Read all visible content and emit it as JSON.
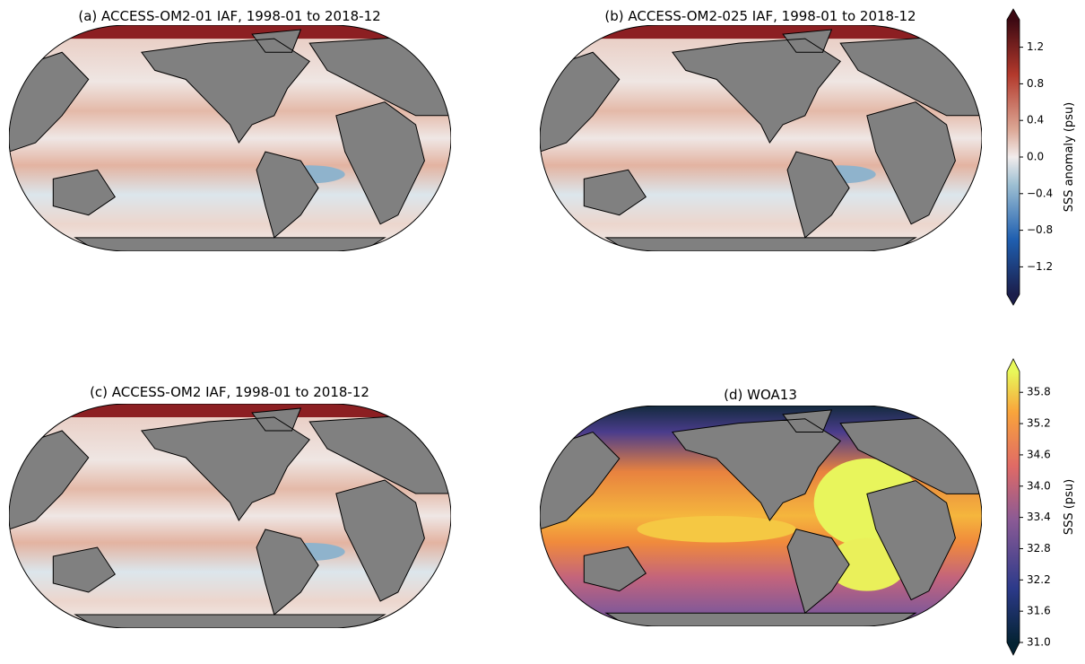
{
  "panels": [
    {
      "title": "(a) ACCESS-OM2-01 IAF, 1998-01 to 2018-12"
    },
    {
      "title": "(b) ACCESS-OM2-025 IAF, 1998-01 to 2018-12"
    },
    {
      "title": "(c) ACCESS-OM2 IAF, 1998-01 to 2018-12"
    },
    {
      "title": "(d) WOA13"
    }
  ],
  "colorbars": [
    {
      "label": "SSS anomaly (psu)",
      "lim": [
        -1.5,
        1.5
      ],
      "ticks": [
        1.2,
        0.8,
        0.4,
        {
          "value": 0,
          "label": "0.0"
        },
        {
          "value": -0.4,
          "label": "−0.4"
        },
        {
          "value": -0.8,
          "label": "−0.8"
        },
        {
          "value": -1.2,
          "label": "−1.2"
        }
      ]
    },
    {
      "label": "SSS (psu)",
      "lim": [
        31.0,
        36.2
      ],
      "ticks": [
        35.8,
        35.2,
        34.6,
        {
          "value": 34,
          "label": "34.0"
        },
        33.4,
        32.8,
        32.2,
        31.6,
        {
          "value": 31,
          "label": "31.0"
        }
      ]
    }
  ]
}
